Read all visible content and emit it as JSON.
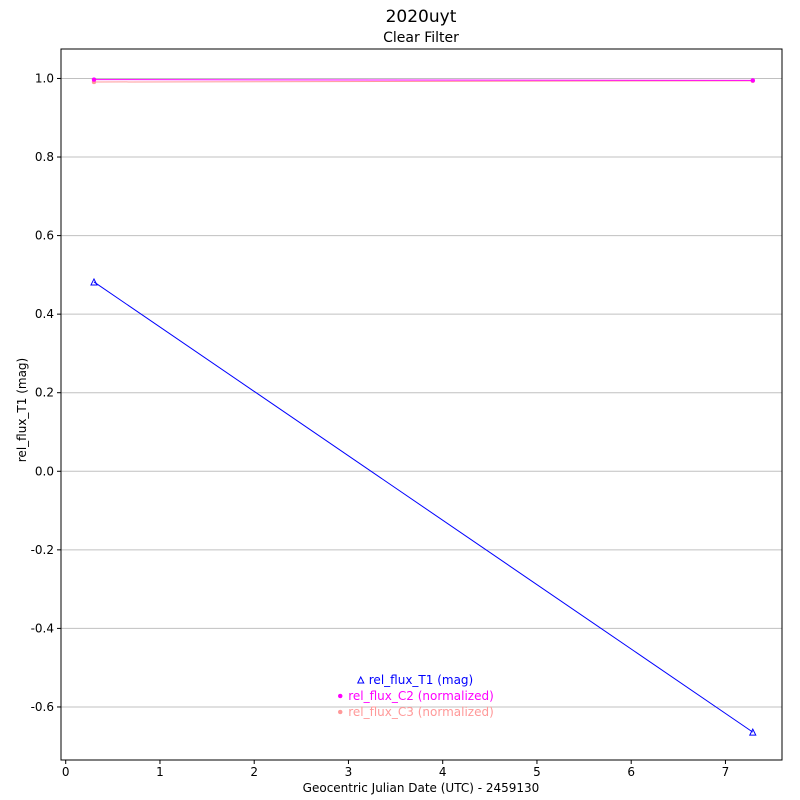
{
  "chart_data": {
    "type": "line",
    "title": "2020uyt",
    "subtitle": "Clear Filter",
    "xlabel": "Geocentric Julian Date (UTC) - 2459130",
    "ylabel": "rel_flux_T1 (mag)",
    "xlim": [
      -0.05,
      7.6
    ],
    "ylim": [
      -0.735,
      1.075
    ],
    "x_ticks": [
      0,
      1,
      2,
      3,
      4,
      5,
      6,
      7
    ],
    "y_ticks": [
      1.0,
      0.8,
      0.6,
      0.4,
      0.2,
      0.0,
      -0.2,
      -0.4,
      -0.6
    ],
    "y_tick_labels": [
      "1.0",
      "0.8",
      "0.6",
      "0.4",
      "0.2",
      "0.0",
      "-0.2",
      "-0.4",
      "-0.6"
    ],
    "grid": "horizontal",
    "legend_position": "bottom-center",
    "series": [
      {
        "name": "rel_flux_T1 (mag)",
        "color": "#0000ff",
        "marker": "triangle",
        "x": [
          0.3,
          7.29
        ],
        "y": [
          0.482,
          -0.664
        ]
      },
      {
        "name": "rel_flux_C2 (normalized)",
        "color": "#ff00ff",
        "marker": "dot",
        "x": [
          0.3,
          7.29
        ],
        "y": [
          0.997,
          0.995
        ]
      },
      {
        "name": "rel_flux_C3 (normalized)",
        "color": "#ff9999",
        "marker": "dot",
        "x": [
          0.3,
          7.29
        ],
        "y": [
          0.991,
          0.994
        ]
      }
    ]
  }
}
